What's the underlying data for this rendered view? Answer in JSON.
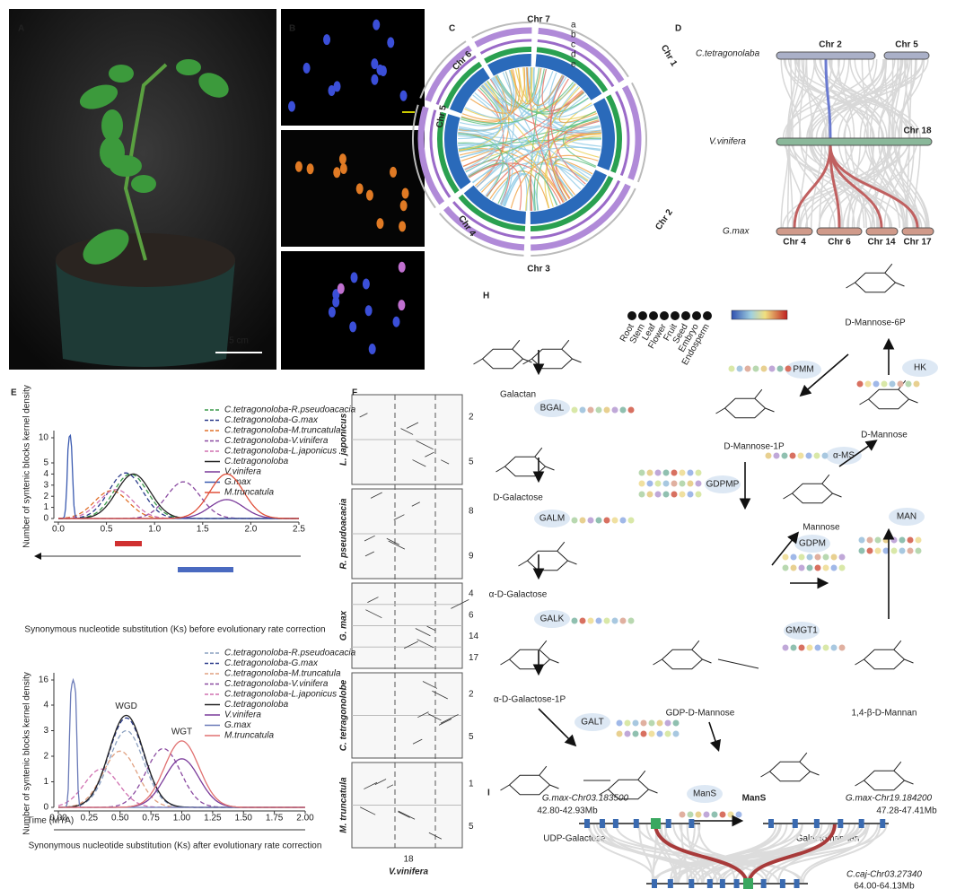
{
  "panel_labels": [
    "A",
    "B",
    "C",
    "D",
    "E",
    "F",
    "H",
    "I"
  ],
  "A": {
    "scale_bar": "5 cm"
  },
  "C": {
    "chromosomes": [
      "Chr 1",
      "Chr 2",
      "Chr 3",
      "Chr 4",
      "Chr 5",
      "Chr 6",
      "Chr 7"
    ],
    "tracks": [
      "a",
      "b",
      "c",
      "d",
      "e"
    ]
  },
  "D": {
    "species": [
      "C.tetragonolaba",
      "V.vinifera",
      "G.max"
    ],
    "top_chromosomes": [
      "Chr 2",
      "Chr 5"
    ],
    "middle_chromosome": "Chr 18",
    "bottom_chromosomes": [
      "Chr 4",
      "Chr 6",
      "Chr 14",
      "Chr 17"
    ]
  },
  "E": {
    "y_label": "Number of syntenic blocks kernel density",
    "plots": [
      {
        "title": "Synonymous nucleotide substitution (Ks) before evolutionary rate correction",
        "xlim": [
          0,
          2.5
        ],
        "xticks": [
          {
            "value": 0,
            "label": "0.0"
          },
          {
            "value": 0.5,
            "label": "0.5"
          },
          {
            "value": 1,
            "label": "1.0"
          },
          {
            "value": 1.5,
            "label": "1.5"
          },
          {
            "value": 2,
            "label": "2.0"
          },
          {
            "value": 2.5,
            "label": "2.5"
          }
        ],
        "ylim": [
          0,
          11
        ],
        "yticks": [
          0,
          1,
          2,
          3,
          4,
          5,
          10
        ],
        "series": [
          {
            "name": "C.tetragonoloba-R.pseudoacacia",
            "color": "#3a9a4a",
            "dashed": true,
            "peak": 0.75,
            "height": 4.0
          },
          {
            "name": "C.tetragonoloba-G.max",
            "color": "#2a3a8a",
            "dashed": true,
            "peak": 0.7,
            "height": 4.1
          },
          {
            "name": "C.tetragonoloba-M.truncatula",
            "color": "#e0702a",
            "dashed": true,
            "peak": 0.55,
            "height": 2.5
          },
          {
            "name": "C.tetragonoloba-V.vinifera",
            "color": "#8a4aa0",
            "dashed": true,
            "peak": 1.3,
            "height": 3.3
          },
          {
            "name": "C.tetragonoloba-L.japonicus",
            "color": "#d070b0",
            "dashed": true,
            "peak": 0.6,
            "height": 2.6
          },
          {
            "name": "C.tetragonoloba",
            "color": "#222222",
            "dashed": false,
            "peak": 0.78,
            "height": 4.0
          },
          {
            "name": "V.vinifera",
            "color": "#7a3a9a",
            "dashed": false,
            "peak": 1.75,
            "height": 1.7
          },
          {
            "name": "G.max",
            "color": "#3a5ab0",
            "dashed": false,
            "peak": 0.12,
            "height": 11
          },
          {
            "name": "M.truncatula",
            "color": "#e0503a",
            "dashed": false,
            "peak": 1.75,
            "height": 4.0
          }
        ]
      },
      {
        "title": "Synonymous nucleotide substitution (Ks) after evolutionary rate correction",
        "x_label": "Time (MYA)",
        "annotations": [
          "WGD",
          "WGT"
        ],
        "xlim": [
          0,
          2
        ],
        "xticks": [
          {
            "value": 0,
            "label": "0.00"
          },
          {
            "value": 0.25,
            "label": "0.25"
          },
          {
            "value": 0.5,
            "label": "0.50"
          },
          {
            "value": 0.75,
            "label": "0.75"
          },
          {
            "value": 1,
            "label": "1.00"
          },
          {
            "value": 1.25,
            "label": "1.25"
          },
          {
            "value": 1.5,
            "label": "1.50"
          },
          {
            "value": 1.75,
            "label": "1.75"
          },
          {
            "value": 2,
            "label": "2.00"
          }
        ],
        "ylim": [
          0,
          16
        ],
        "yticks": [
          0,
          1,
          2,
          3,
          4,
          16
        ],
        "series": [
          {
            "name": "C.tetragonoloba-R.pseudoacacia",
            "color": "#8aa0c0",
            "dashed": true,
            "peak": 0.55,
            "height": 3.0
          },
          {
            "name": "C.tetragonoloba-G.max",
            "color": "#2a3a8a",
            "dashed": true,
            "peak": 0.55,
            "height": 3.5
          },
          {
            "name": "C.tetragonoloba-M.truncatula",
            "color": "#e0a080",
            "dashed": true,
            "peak": 0.5,
            "height": 2.2
          },
          {
            "name": "C.tetragonoloba-V.vinifera",
            "color": "#8a4aa0",
            "dashed": true,
            "peak": 0.85,
            "height": 2.3
          },
          {
            "name": "C.tetragonoloba-L.japonicus",
            "color": "#d070b0",
            "dashed": true,
            "peak": 0.35,
            "height": 1.5
          },
          {
            "name": "C.tetragonoloba",
            "color": "#222222",
            "dashed": false,
            "peak": 0.55,
            "height": 3.6
          },
          {
            "name": "V.vinifera",
            "color": "#7a3a9a",
            "dashed": false,
            "peak": 1.0,
            "height": 1.9
          },
          {
            "name": "G.max",
            "color": "#6a7ab8",
            "dashed": false,
            "peak": 0.12,
            "height": 16
          },
          {
            "name": "M.truncatula",
            "color": "#e07070",
            "dashed": false,
            "peak": 1.0,
            "height": 2.6
          }
        ]
      }
    ]
  },
  "F": {
    "species": [
      "L. japonicus",
      "R. pseudoacacia",
      "G. max",
      "C. tetragonolobe",
      "M. truncatula"
    ],
    "chromosomes": [
      [
        "2",
        "5"
      ],
      [
        "8",
        "9"
      ],
      [
        "4",
        "6",
        "14",
        "17"
      ],
      [
        "2",
        "5"
      ],
      [
        "1",
        "5"
      ]
    ],
    "x_chromosome": "18",
    "x_species": "V.vinifera"
  },
  "H": {
    "nodes": [
      "Galactan",
      "D-Galactose",
      "α-D-Galactose",
      "α-D-Galactose-1P",
      "UDP-Galactose",
      "GDP-D-Mannose",
      "Galactomannan",
      "1,4-β-D-Mannan",
      "Mannose",
      "D-Mannose",
      "D-Mannose-6P",
      "D-Mannose-1P"
    ],
    "enzymes": [
      "BGAL",
      "GALM",
      "GALK",
      "GALT",
      "ManS",
      "GMGT1",
      "GDPM",
      "MAN",
      "α-MS",
      "HK",
      "PMM",
      "GDPMP"
    ],
    "tissues": [
      "Root",
      "Stem",
      "Leaf",
      "Flower",
      "Fruit",
      "Seed",
      "Embryo",
      "Endosperm"
    ]
  },
  "I": {
    "gene": "ManS",
    "loci": [
      {
        "name": "G.max-Chr03.183500",
        "range": "42.80-42.93Mb"
      },
      {
        "name": "G.max-Chr19.184200",
        "range": "47.28-47.41Mb"
      },
      {
        "name": "C.caj-Chr03.27340",
        "range": "64.00-64.13Mb"
      }
    ]
  }
}
